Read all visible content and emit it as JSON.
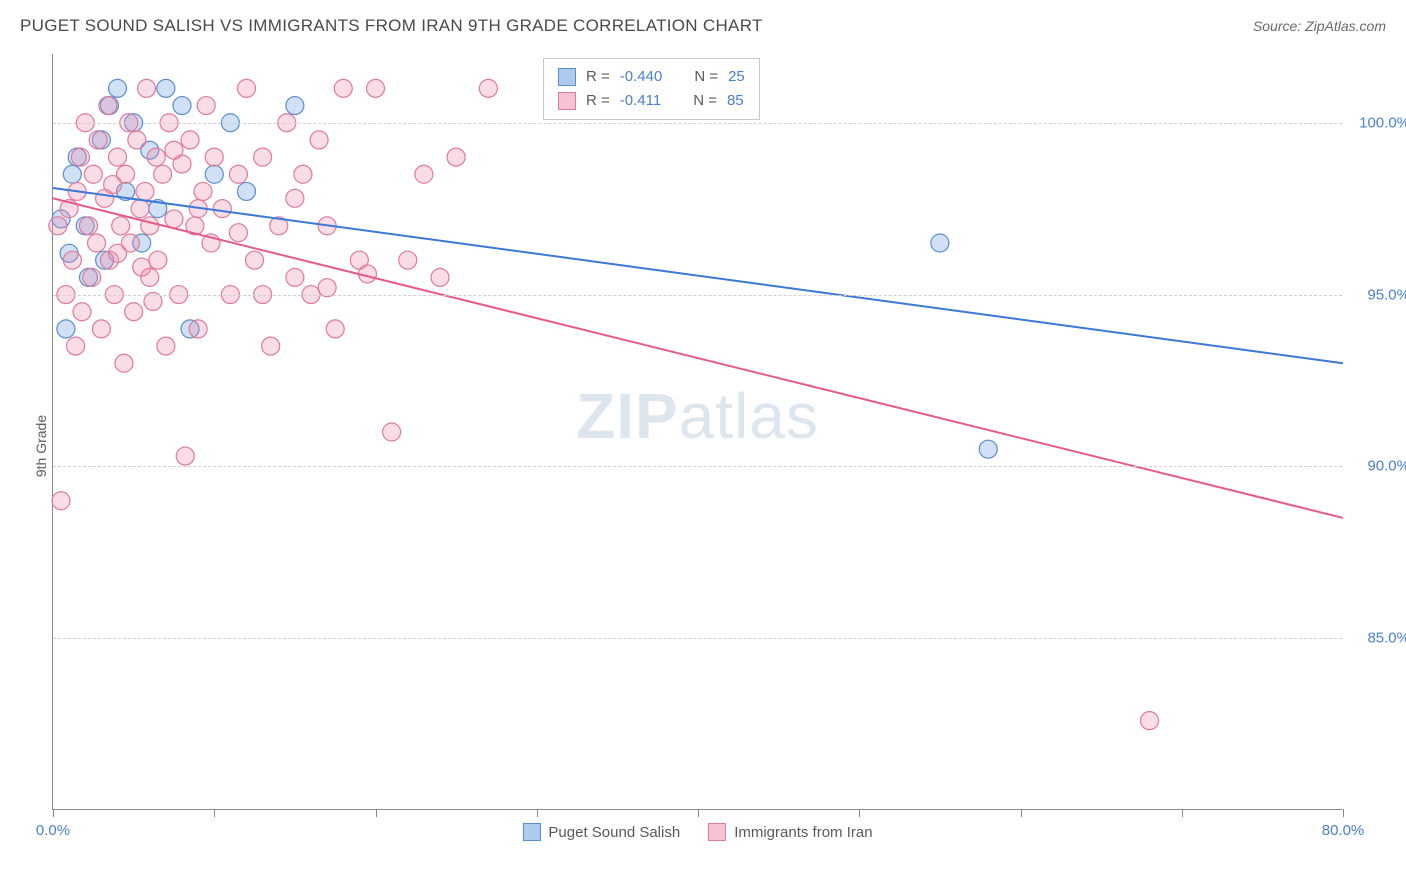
{
  "header": {
    "title": "PUGET SOUND SALISH VS IMMIGRANTS FROM IRAN 9TH GRADE CORRELATION CHART",
    "source": "Source: ZipAtlas.com"
  },
  "chart": {
    "type": "scatter",
    "ylabel": "9th Grade",
    "xlim": [
      0,
      80
    ],
    "ylim": [
      80,
      102
    ],
    "xtick_positions": [
      0,
      10,
      20,
      30,
      40,
      50,
      60,
      70,
      80
    ],
    "xtick_labels": {
      "0": "0.0%",
      "80": "80.0%"
    },
    "ytick_positions": [
      85,
      90,
      95,
      100
    ],
    "ytick_labels": {
      "85": "85.0%",
      "90": "90.0%",
      "95": "95.0%",
      "100": "100.0%"
    },
    "grid_color": "#d0d0d0",
    "axis_color": "#888888",
    "background_color": "#ffffff",
    "tick_label_color": "#4a7fd0",
    "label_color": "#5a5a5a",
    "label_fontsize": 14,
    "tick_fontsize": 15,
    "series": [
      {
        "name": "Puget Sound Salish",
        "color_fill": "rgba(120,165,225,0.35)",
        "color_stroke": "#5a8ed0",
        "swatch_fill": "#aecbef",
        "swatch_stroke": "#5a8ed0",
        "marker_radius": 9,
        "R": "-0.440",
        "N": "25",
        "trend": {
          "x1": 0,
          "y1": 98.1,
          "x2": 80,
          "y2": 93.0,
          "stroke": "#3b78d8",
          "width": 2
        },
        "points": [
          [
            0.5,
            97.2
          ],
          [
            0.8,
            94.0
          ],
          [
            1.0,
            96.2
          ],
          [
            1.2,
            98.5
          ],
          [
            1.5,
            99.0
          ],
          [
            2.0,
            97.0
          ],
          [
            2.2,
            95.5
          ],
          [
            3.0,
            99.5
          ],
          [
            3.5,
            100.5
          ],
          [
            4.0,
            101.0
          ],
          [
            4.5,
            98.0
          ],
          [
            5.0,
            100.0
          ],
          [
            5.5,
            96.5
          ],
          [
            6.0,
            99.2
          ],
          [
            7.0,
            101.0
          ],
          [
            8.0,
            100.5
          ],
          [
            8.5,
            94.0
          ],
          [
            10.0,
            98.5
          ],
          [
            11.0,
            100.0
          ],
          [
            12.0,
            98.0
          ],
          [
            15.0,
            100.5
          ],
          [
            55.0,
            96.5
          ],
          [
            58.0,
            90.5
          ],
          [
            6.5,
            97.5
          ],
          [
            3.2,
            96.0
          ]
        ]
      },
      {
        "name": "Immigrants from Iran",
        "color_fill": "rgba(235,140,170,0.30)",
        "color_stroke": "#e07a9a",
        "swatch_fill": "#f5c3d2",
        "swatch_stroke": "#e07a9a",
        "marker_radius": 9,
        "R": "-0.411",
        "N": "85",
        "trend": {
          "x1": 0,
          "y1": 97.8,
          "x2": 80,
          "y2": 88.5,
          "stroke": "#e85a87",
          "width": 2
        },
        "points": [
          [
            0.3,
            97.0
          ],
          [
            0.5,
            89.0
          ],
          [
            0.8,
            95.0
          ],
          [
            1.0,
            97.5
          ],
          [
            1.2,
            96.0
          ],
          [
            1.4,
            93.5
          ],
          [
            1.5,
            98.0
          ],
          [
            1.7,
            99.0
          ],
          [
            1.8,
            94.5
          ],
          [
            2.0,
            100.0
          ],
          [
            2.2,
            97.0
          ],
          [
            2.4,
            95.5
          ],
          [
            2.5,
            98.5
          ],
          [
            2.7,
            96.5
          ],
          [
            2.8,
            99.5
          ],
          [
            3.0,
            94.0
          ],
          [
            3.2,
            97.8
          ],
          [
            3.4,
            100.5
          ],
          [
            3.5,
            96.0
          ],
          [
            3.7,
            98.2
          ],
          [
            3.8,
            95.0
          ],
          [
            4.0,
            99.0
          ],
          [
            4.2,
            97.0
          ],
          [
            4.4,
            93.0
          ],
          [
            4.5,
            98.5
          ],
          [
            4.7,
            100.0
          ],
          [
            4.8,
            96.5
          ],
          [
            5.0,
            94.5
          ],
          [
            5.2,
            99.5
          ],
          [
            5.4,
            97.5
          ],
          [
            5.5,
            95.8
          ],
          [
            5.7,
            98.0
          ],
          [
            5.8,
            101.0
          ],
          [
            6.0,
            97.0
          ],
          [
            6.2,
            94.8
          ],
          [
            6.4,
            99.0
          ],
          [
            6.5,
            96.0
          ],
          [
            6.8,
            98.5
          ],
          [
            7.0,
            93.5
          ],
          [
            7.2,
            100.0
          ],
          [
            7.5,
            97.2
          ],
          [
            7.8,
            95.0
          ],
          [
            8.0,
            98.8
          ],
          [
            8.2,
            90.3
          ],
          [
            8.5,
            99.5
          ],
          [
            8.8,
            97.0
          ],
          [
            9.0,
            94.0
          ],
          [
            9.3,
            98.0
          ],
          [
            9.5,
            100.5
          ],
          [
            9.8,
            96.5
          ],
          [
            10.0,
            99.0
          ],
          [
            10.5,
            97.5
          ],
          [
            11.0,
            95.0
          ],
          [
            11.5,
            98.5
          ],
          [
            12.0,
            101.0
          ],
          [
            12.5,
            96.0
          ],
          [
            13.0,
            99.0
          ],
          [
            13.5,
            93.5
          ],
          [
            14.0,
            97.0
          ],
          [
            14.5,
            100.0
          ],
          [
            15.0,
            95.5
          ],
          [
            15.5,
            98.5
          ],
          [
            16.0,
            95.0
          ],
          [
            16.5,
            99.5
          ],
          [
            17.0,
            97.0
          ],
          [
            17.5,
            94.0
          ],
          [
            18.0,
            101.0
          ],
          [
            19.0,
            96.0
          ],
          [
            19.5,
            95.6
          ],
          [
            20.0,
            101.0
          ],
          [
            21.0,
            91.0
          ],
          [
            22.0,
            96.0
          ],
          [
            23.0,
            98.5
          ],
          [
            24.0,
            95.5
          ],
          [
            25.0,
            99.0
          ],
          [
            27.0,
            101.0
          ],
          [
            68.0,
            82.6
          ],
          [
            4.0,
            96.2
          ],
          [
            6.0,
            95.5
          ],
          [
            7.5,
            99.2
          ],
          [
            9.0,
            97.5
          ],
          [
            11.5,
            96.8
          ],
          [
            13.0,
            95.0
          ],
          [
            15.0,
            97.8
          ],
          [
            17.0,
            95.2
          ]
        ]
      }
    ],
    "legend_top": {
      "r_prefix": "R = ",
      "n_prefix": "N = "
    },
    "watermark": {
      "text_bold": "ZIP",
      "text_light": "atlas",
      "color": "rgba(120,150,190,0.25)",
      "fontsize": 64
    }
  }
}
